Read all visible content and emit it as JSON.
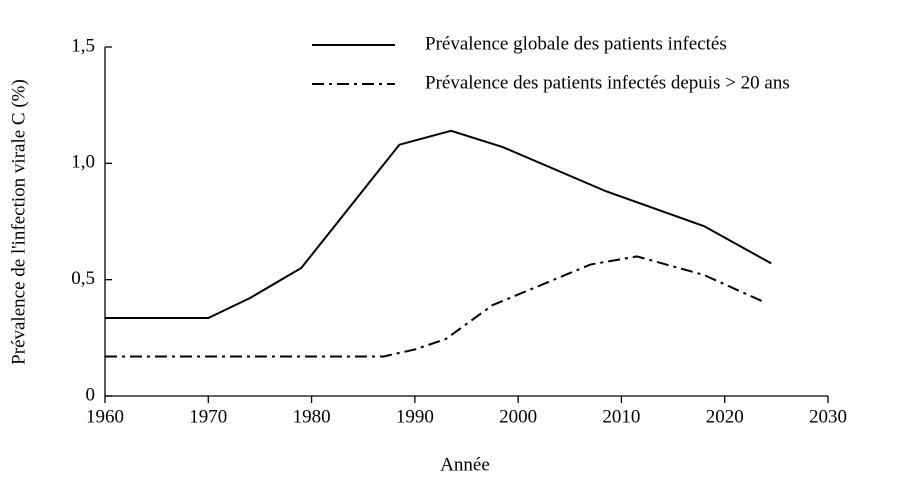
{
  "chart_data": {
    "type": "line",
    "xlabel": "Année",
    "ylabel": "Prévalence de l'infection virale C (%)",
    "series": [
      {
        "name": "Prévalence globale des patients infectés",
        "color": "#000000",
        "linestyle": "solid",
        "x": [
          1960,
          1970,
          1974,
          1979,
          1988.5,
          1993.5,
          1998.5,
          2008.5,
          2018,
          2024.5
        ],
        "values": [
          0.335,
          0.335,
          0.42,
          0.55,
          1.08,
          1.14,
          1.07,
          0.88,
          0.73,
          0.57
        ]
      },
      {
        "name": "Prévalence des patients infectés depuis > 20 ans",
        "color": "#000000",
        "linestyle": "dashdot",
        "x": [
          1960,
          1987,
          1990,
          1993,
          1997.5,
          2007,
          2011.5,
          2018,
          2024
        ],
        "values": [
          0.17,
          0.17,
          0.2,
          0.245,
          0.39,
          0.565,
          0.6,
          0.52,
          0.4
        ]
      }
    ],
    "xlim": [
      1960,
      2030
    ],
    "xticks": [
      1960,
      1970,
      1980,
      1990,
      2000,
      2010,
      2020,
      2030
    ],
    "ylim": [
      0,
      1.5
    ],
    "yticks": [
      0,
      {
        "value": 0.5,
        "label": "0,5"
      },
      {
        "value": 1.0,
        "label": "1,0"
      },
      {
        "value": 1.5,
        "label": "1,5"
      }
    ],
    "legend": "upper right"
  }
}
